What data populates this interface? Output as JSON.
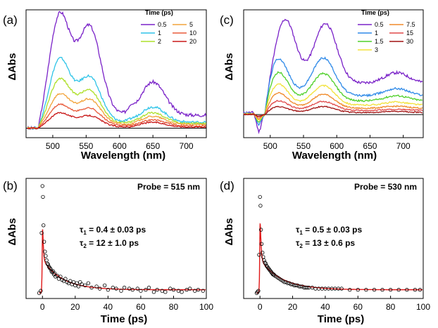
{
  "figure": {
    "panels": [
      {
        "id": "a",
        "panel_label": "(a)"
      },
      {
        "id": "c",
        "panel_label": "(c)"
      },
      {
        "id": "b",
        "panel_label": "(b)"
      },
      {
        "id": "d",
        "panel_label": "(d)"
      }
    ]
  },
  "chart_data": [
    {
      "panel": "(a)",
      "type": "line",
      "xlabel": "Wavelength (nm)",
      "ylabel": "ΔAbs",
      "xlim": [
        460,
        730
      ],
      "ylim": [
        -0.08,
        1.0
      ],
      "xticks": [
        500,
        550,
        600,
        650,
        700
      ],
      "y_tick_labels_shown": false,
      "legend": {
        "title": "Time (ps)",
        "position": "top-right",
        "columns": 2
      },
      "series": [
        {
          "name": "0.5",
          "color": "#7a22c8",
          "peaks": [
            [
              510,
              0.97
            ],
            [
              555,
              0.81
            ],
            [
              650,
              0.39
            ]
          ],
          "dip": [
            617,
            0.22
          ],
          "tail": 0.11
        },
        {
          "name": "1",
          "color": "#2fc4e8",
          "peaks": [
            [
              510,
              0.59
            ],
            [
              555,
              0.41
            ],
            [
              650,
              0.18
            ]
          ],
          "dip": [
            617,
            0.07
          ],
          "tail": 0.05
        },
        {
          "name": "2",
          "color": "#aee02a",
          "peaks": [
            [
              510,
              0.42
            ],
            [
              555,
              0.3
            ],
            [
              650,
              0.13
            ]
          ],
          "dip": [
            617,
            0.03
          ],
          "tail": 0.04
        },
        {
          "name": "5",
          "color": "#f2a33a",
          "peaks": [
            [
              510,
              0.29
            ],
            [
              555,
              0.23
            ],
            [
              650,
              0.1
            ]
          ],
          "dip": [
            617,
            0.01
          ],
          "tail": 0.03
        },
        {
          "name": "10",
          "color": "#e85a3a",
          "peaks": [
            [
              510,
              0.2
            ],
            [
              555,
              0.16
            ],
            [
              650,
              0.07
            ]
          ],
          "dip": [
            617,
            0.0
          ],
          "tail": 0.02
        },
        {
          "name": "20",
          "color": "#c81818",
          "peaks": [
            [
              510,
              0.13
            ],
            [
              555,
              0.1
            ],
            [
              650,
              0.05
            ]
          ],
          "dip": [
            617,
            -0.01
          ],
          "tail": 0.01
        }
      ]
    },
    {
      "panel": "(c)",
      "type": "line",
      "xlabel": "Wavelength (nm)",
      "ylabel": "ΔAbs",
      "xlim": [
        460,
        730
      ],
      "ylim": [
        -0.22,
        1.0
      ],
      "xticks": [
        500,
        550,
        600,
        650,
        700
      ],
      "y_tick_labels_shown": false,
      "legend": {
        "title": "Time (ps)",
        "position": "top-right",
        "columns": 2
      },
      "series": [
        {
          "name": "0.5",
          "color": "#7a22c8",
          "peaks": [
            [
              522,
              0.92
            ],
            [
              583,
              0.75
            ],
            [
              690,
              0.4
            ]
          ],
          "dip": [
            552,
            0.5
          ],
          "tail": 0.3
        },
        {
          "name": "1",
          "color": "#2f8ae8",
          "peaks": [
            [
              510,
              0.57
            ],
            [
              580,
              0.47
            ],
            [
              690,
              0.25
            ]
          ],
          "dip": [
            552,
            0.27
          ],
          "tail": 0.18
        },
        {
          "name": "1.5",
          "color": "#4fd02a",
          "peaks": [
            [
              510,
              0.43
            ],
            [
              580,
              0.34
            ],
            [
              690,
              0.18
            ]
          ],
          "dip": [
            552,
            0.17
          ],
          "tail": 0.13
        },
        {
          "name": "3",
          "color": "#f2e23a",
          "peaks": [
            [
              510,
              0.31
            ],
            [
              580,
              0.24
            ],
            [
              690,
              0.12
            ]
          ],
          "dip": [
            552,
            0.1
          ],
          "tail": 0.09
        },
        {
          "name": "7.5",
          "color": "#f08a2a",
          "peaks": [
            [
              510,
              0.22
            ],
            [
              580,
              0.17
            ],
            [
              690,
              0.08
            ]
          ],
          "dip": [
            552,
            0.06
          ],
          "tail": 0.06
        },
        {
          "name": "15",
          "color": "#e04848",
          "peaks": [
            [
              510,
              0.14
            ],
            [
              580,
              0.11
            ],
            [
              690,
              0.05
            ]
          ],
          "dip": [
            552,
            0.03
          ],
          "tail": 0.04
        },
        {
          "name": "30",
          "color": "#a01010",
          "peaks": [
            [
              510,
              0.08
            ],
            [
              580,
              0.07
            ],
            [
              690,
              0.03
            ]
          ],
          "dip": [
            552,
            0.01
          ],
          "tail": 0.02
        }
      ]
    },
    {
      "panel": "(b)",
      "type": "scatter",
      "xlabel": "Time (ps)",
      "ylabel": "ΔAbs",
      "xlim": [
        -10,
        100
      ],
      "ylim": [
        -0.05,
        1.05
      ],
      "xticks": [
        0,
        20,
        40,
        60,
        80,
        100
      ],
      "y_tick_labels_shown": false,
      "annotation": "Probe = 515 nm",
      "fit_text": {
        "tau1_sym": "τ",
        "tau1_sub": "1",
        "tau1_val": " = 0.4 ± 0.03 ps",
        "tau2_sym": "τ",
        "tau2_sub": "2",
        "tau2_val": " = 12 ± 1.0 ps"
      },
      "fit": {
        "color": "#e01818",
        "rise_ps": 0.3,
        "a1": 0.55,
        "tau1_ps": 0.4,
        "a2": 0.28,
        "tau2_ps": 12,
        "offset": 0.03
      },
      "data_points": {
        "x": [
          -2,
          -1,
          -0.5,
          0,
          0.3,
          0.6,
          1,
          1.5,
          2,
          2.5,
          3,
          3.5,
          4,
          4.5,
          5,
          5.5,
          6,
          6.5,
          7,
          7.5,
          8,
          9,
          10,
          11,
          12,
          13,
          14,
          15,
          16,
          17,
          18,
          19,
          20,
          21,
          22,
          23,
          24,
          26,
          28,
          30,
          33,
          35,
          38,
          40,
          43,
          45,
          48,
          50,
          53,
          55,
          58,
          60,
          63,
          65,
          68,
          70,
          73,
          75,
          78,
          80,
          83,
          85,
          88,
          90,
          93,
          95,
          98
        ],
        "y": [
          0.0,
          0.02,
          0.55,
          0.98,
          0.88,
          0.62,
          0.47,
          0.38,
          0.34,
          0.3,
          0.27,
          0.26,
          0.24,
          0.23,
          0.22,
          0.2,
          0.19,
          0.2,
          0.17,
          0.18,
          0.15,
          0.16,
          0.13,
          0.15,
          0.12,
          0.11,
          0.13,
          0.1,
          0.09,
          0.11,
          0.08,
          0.1,
          0.07,
          0.09,
          0.06,
          0.1,
          0.08,
          0.07,
          0.09,
          0.05,
          0.06,
          0.04,
          0.07,
          0.03,
          0.05,
          0.04,
          0.02,
          0.05,
          0.04,
          0.03,
          0.04,
          0.02,
          0.03,
          0.05,
          0.01,
          0.03,
          0.02,
          0.01,
          0.04,
          0.03,
          0.02,
          0.01,
          0.03,
          0.04,
          0.02,
          0.03,
          0.02
        ]
      }
    },
    {
      "panel": "(d)",
      "type": "scatter",
      "xlabel": "Time (ps)",
      "ylabel": "ΔAbs",
      "xlim": [
        -10,
        100
      ],
      "ylim": [
        -0.05,
        1.05
      ],
      "xticks": [
        0,
        20,
        40,
        60,
        80,
        100
      ],
      "y_tick_labels_shown": false,
      "annotation": "Probe = 530 nm",
      "fit_text": {
        "tau1_sym": "τ",
        "tau1_sub": "1",
        "tau1_val": " = 0.5 ± 0.03 ps",
        "tau2_sym": "τ",
        "tau2_sub": "2",
        "tau2_val": " = 13 ± 0.6 ps"
      },
      "fit": {
        "color": "#e01818",
        "rise_ps": 0.3,
        "a1": 0.6,
        "tau1_ps": 0.5,
        "a2": 0.28,
        "tau2_ps": 13,
        "offset": 0.03
      },
      "data_points": {
        "x": [
          -2,
          -1.5,
          -1,
          -0.5,
          0,
          0.3,
          0.6,
          1,
          1.5,
          2,
          2.5,
          3,
          3.5,
          4,
          4.5,
          5,
          5.5,
          6,
          6.5,
          7,
          7.5,
          8,
          8.5,
          9,
          10,
          11,
          12,
          13,
          14,
          15,
          16,
          17,
          18,
          19,
          20,
          21,
          22,
          23,
          24,
          25,
          26,
          27,
          28,
          29,
          30,
          32,
          34,
          36,
          38,
          40,
          42,
          44,
          46,
          48,
          50,
          55,
          60,
          65,
          70,
          75,
          80,
          85,
          90,
          95,
          98
        ],
        "y": [
          0.0,
          0.01,
          0.02,
          0.35,
          0.88,
          0.8,
          0.58,
          0.45,
          0.37,
          0.33,
          0.3,
          0.28,
          0.27,
          0.25,
          0.24,
          0.23,
          0.22,
          0.21,
          0.2,
          0.19,
          0.18,
          0.17,
          0.17,
          0.16,
          0.15,
          0.14,
          0.13,
          0.12,
          0.11,
          0.1,
          0.1,
          0.09,
          0.09,
          0.08,
          0.08,
          0.07,
          0.07,
          0.07,
          0.06,
          0.06,
          0.06,
          0.05,
          0.05,
          0.05,
          0.05,
          0.05,
          0.04,
          0.04,
          0.04,
          0.04,
          0.04,
          0.04,
          0.04,
          0.04,
          0.04,
          0.03,
          0.03,
          0.03,
          0.03,
          0.03,
          0.03,
          0.03,
          0.03,
          0.03,
          0.03
        ]
      }
    }
  ]
}
